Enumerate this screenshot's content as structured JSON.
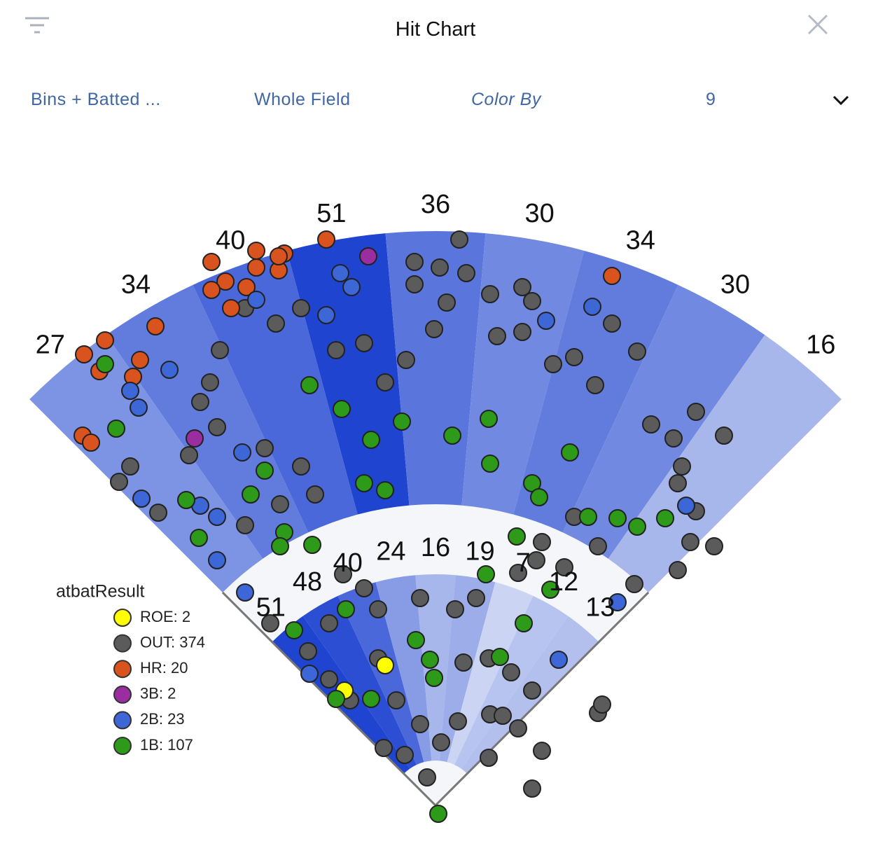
{
  "header": {
    "title": "Hit Chart"
  },
  "toolbar": {
    "view": "Bins + Batted ...",
    "zone": "Whole Field",
    "color_by": "Color By",
    "bins": "9"
  },
  "chart_data": {
    "type": "spray",
    "thetalim": [
      -45,
      45
    ],
    "rlim": [
      0,
      410
    ],
    "bins": {
      "outer": {
        "radii": [
          215,
          410
        ],
        "counts": [
          27,
          34,
          40,
          51,
          36,
          30,
          34,
          30,
          16
        ]
      },
      "inner": {
        "radii": [
          32,
          165
        ],
        "counts": [
          51,
          48,
          40,
          24,
          16,
          19,
          7,
          12,
          13
        ]
      }
    },
    "bin_color_range": [
      "#e6ebf8",
      "#1f44d0"
    ],
    "legend_title": "atbatResult",
    "series": [
      {
        "name": "ROE: 2",
        "color": "#ffff00",
        "x": [
          -36,
          -65
        ],
        "y": [
          100,
          82
        ]
      },
      {
        "name": "OUT: 374",
        "color": "#5b5b5b",
        "x": [
          17,
          -15,
          3,
          22,
          -15,
          8,
          39,
          62,
          69,
          44,
          62,
          84,
          99,
          114,
          126,
          144,
          154,
          186,
          206,
          170,
          176,
          173,
          186,
          182,
          199,
          173,
          142,
          116,
          99,
          76,
          72,
          59,
          92,
          -1,
          -21,
          -36,
          -51,
          -71,
          -96,
          -114,
          -136,
          -154,
          -161,
          -168,
          -156,
          -176,
          -218,
          -226,
          -198,
          -136,
          -122,
          -96,
          -86,
          -111,
          -66,
          -51,
          -41,
          -11,
          14,
          29,
          -76,
          -91,
          -76,
          -61,
          -28,
          -11,
          16,
          4,
          -37,
          -22,
          -6,
          38,
          59,
          76,
          69,
          39,
          48,
          54,
          69,
          116,
          119,
          38,
          20,
          -41,
          -118
        ],
        "y": [
          404,
          388,
          384,
          380,
          372,
          359,
          365,
          370,
          360,
          335,
          338,
          315,
          320,
          300,
          344,
          324,
          272,
          281,
          264,
          262,
          242,
          230,
          210,
          188,
          185,
          168,
          158,
          185,
          206,
          188,
          175,
          166,
          170,
          340,
          318,
          302,
          330,
          325,
          355,
          344,
          355,
          325,
          302,
          288,
          270,
          250,
          242,
          231,
          209,
          200,
          255,
          242,
          222,
          215,
          165,
          155,
          140,
          148,
          140,
          148,
          130,
          110,
          90,
          75,
          75,
          58,
          60,
          45,
          41,
          36,
          20,
          34,
          55,
          39,
          12,
          65,
          64,
          95,
          82,
          66,
          72,
          105,
          102,
          105,
          130
        ]
      },
      {
        "name": "HR: 20",
        "color": "#d9531e",
        "x": [
          -251,
          -236,
          -240,
          -216,
          -211,
          -200,
          -252,
          -246,
          -160,
          -150,
          -160,
          -146,
          -135,
          -128,
          -128,
          -112,
          -108,
          -78,
          126,
          -112
        ],
        "y": [
          322,
          332,
          310,
          306,
          318,
          342,
          264,
          259,
          388,
          374,
          368,
          355,
          370,
          396,
          384,
          382,
          394,
          404,
          378,
          392
        ]
      },
      {
        "name": "3B: 2",
        "color": "#9a2ea0",
        "x": [
          -48,
          -172
        ],
        "y": [
          392,
          262
        ]
      },
      {
        "name": "2B: 23",
        "color": "#3d66d6",
        "x": [
          -218,
          -212,
          -190,
          -128,
          -68,
          -60,
          -78,
          112,
          79,
          -210,
          -168,
          -156,
          -156,
          -138,
          179,
          130,
          88,
          -136,
          -90
        ],
        "y": [
          296,
          284,
          311,
          361,
          380,
          370,
          350,
          356,
          346,
          219,
          214,
          206,
          175,
          252,
          214,
          145,
          104,
          152,
          94
        ]
      },
      {
        "name": "1B: 107",
        "color": "#2e9a1a",
        "x": [
          -236,
          -228,
          -178,
          -169,
          -132,
          -122,
          -90,
          -67,
          -46,
          -24,
          12,
          38,
          39,
          -36,
          -51,
          69,
          74,
          96,
          109,
          130,
          164,
          144,
          58,
          36,
          82,
          63,
          -14,
          -4,
          46,
          -1,
          -46,
          -71,
          -101,
          -64,
          2,
          -108,
          -111,
          -88
        ],
        "y": [
          315,
          269,
          218,
          191,
          222,
          239,
          300,
          283,
          261,
          274,
          264,
          276,
          244,
          225,
          230,
          230,
          220,
          252,
          206,
          205,
          205,
          199,
          192,
          165,
          154,
          130,
          118,
          104,
          106,
          91,
          76,
          76,
          125,
          140,
          -6,
          195,
          185,
          186
        ]
      }
    ]
  }
}
